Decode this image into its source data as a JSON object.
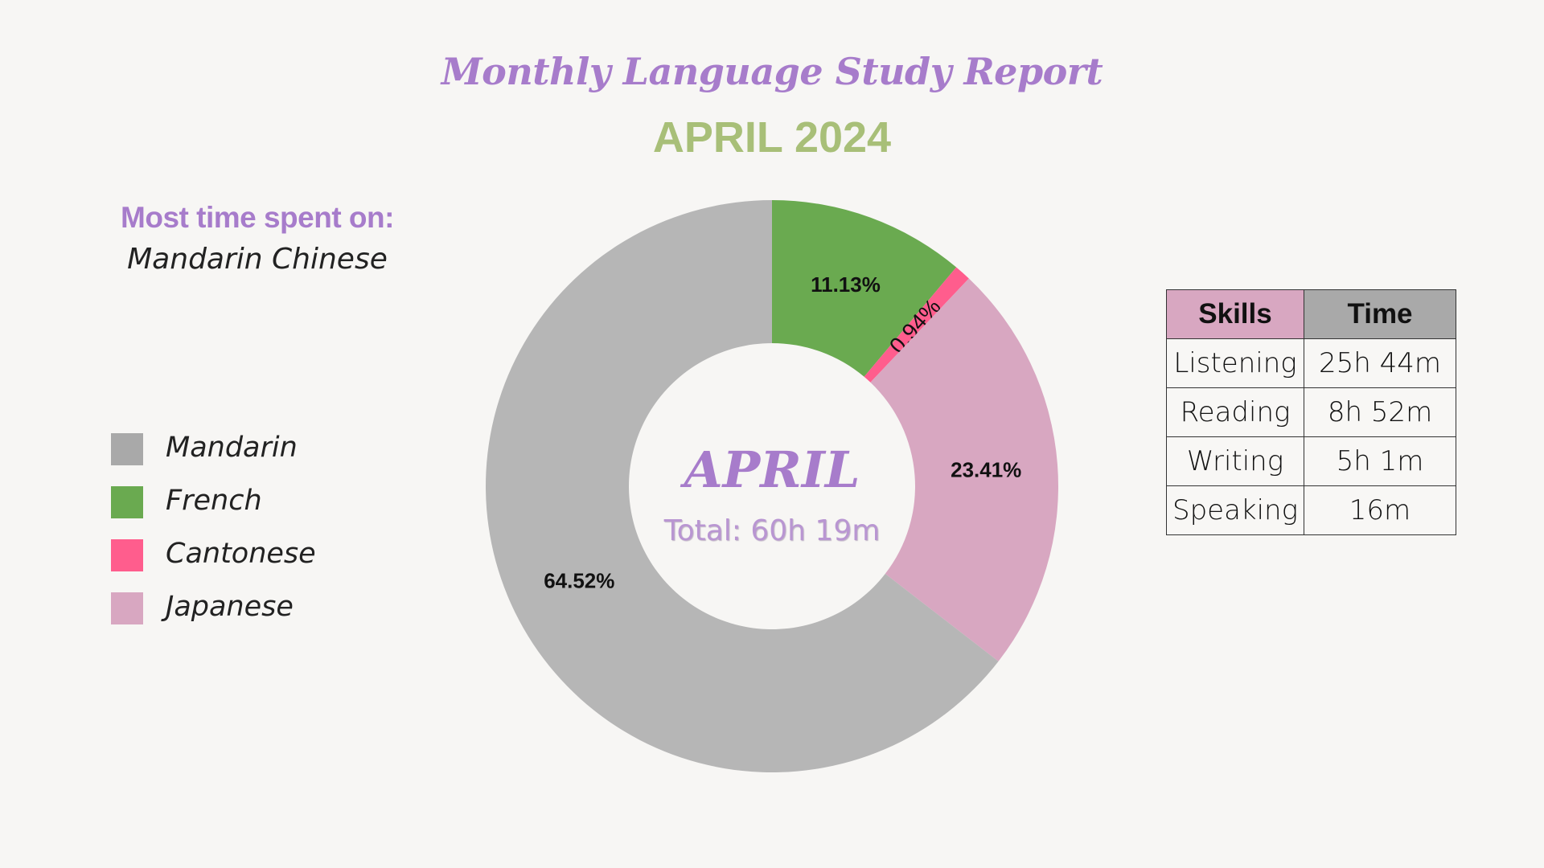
{
  "report": {
    "title": "Monthly Language Study Report",
    "subtitle": "APRIL 2024",
    "most_time_label": "Most time spent on:",
    "most_time_value": "Mandarin Chinese",
    "center_title": "APRIL",
    "center_total": "Total: 60h 19m"
  },
  "legend": [
    {
      "label": "Mandarin",
      "color": "#a9a9a9"
    },
    {
      "label": "French",
      "color": "#6aaa50"
    },
    {
      "label": "Cantonese",
      "color": "#ff5d8d"
    },
    {
      "label": "Japanese",
      "color": "#d8a7c1"
    }
  ],
  "chart_data": {
    "type": "pie",
    "donut": true,
    "start": "top",
    "direction": "clockwise",
    "categories": [
      "French",
      "Cantonese",
      "Japanese",
      "Mandarin"
    ],
    "values": [
      11.13,
      0.94,
      23.41,
      64.52
    ],
    "labels": [
      "11.13%",
      "0.94%",
      "23.41%",
      "64.52%"
    ],
    "colors": [
      "#6aaa50",
      "#ff5d8d",
      "#d8a7c1",
      "#b6b6b6"
    ],
    "legend_position": "left"
  },
  "skills_table": {
    "headers": [
      "Skills",
      "Time"
    ],
    "header_colors": [
      "#d8a7c1",
      "#a9a9a9"
    ],
    "rows": [
      [
        "Listening",
        "25h 44m"
      ],
      [
        "Reading",
        "8h 52m"
      ],
      [
        "Writing",
        "5h 1m"
      ],
      [
        "Speaking",
        "16m"
      ]
    ]
  }
}
